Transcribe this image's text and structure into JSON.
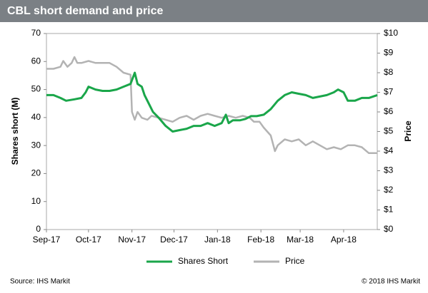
{
  "chart_data": {
    "type": "line",
    "title": "CBL short demand and price",
    "ylabel": "Shares short (M)",
    "y2label": "Price",
    "xlim": [
      0,
      236
    ],
    "xticks": [
      {
        "value": 0,
        "label": "Sep-17"
      },
      {
        "value": 30,
        "label": "Oct-17"
      },
      {
        "value": 61,
        "label": "Nov-17"
      },
      {
        "value": 91,
        "label": "Dec-17"
      },
      {
        "value": 122,
        "label": "Jan-18"
      },
      {
        "value": 153,
        "label": "Feb-18"
      },
      {
        "value": 181,
        "label": "Mar-18"
      },
      {
        "value": 212,
        "label": "Apr-18"
      }
    ],
    "ylim": [
      0,
      70
    ],
    "yticks": [
      0,
      10,
      20,
      30,
      40,
      50,
      60,
      70
    ],
    "y2lim": [
      0,
      10
    ],
    "y2ticks": [
      {
        "value": 0,
        "label": "$0"
      },
      {
        "value": 1,
        "label": "$1"
      },
      {
        "value": 2,
        "label": "$2"
      },
      {
        "value": 3,
        "label": "$3"
      },
      {
        "value": 4,
        "label": "$4"
      },
      {
        "value": 5,
        "label": "$5"
      },
      {
        "value": 6,
        "label": "$6"
      },
      {
        "value": 7,
        "label": "$7"
      },
      {
        "value": 8,
        "label": "$8"
      },
      {
        "value": 9,
        "label": "$9"
      },
      {
        "value": 10,
        "label": "$10"
      }
    ],
    "series": [
      {
        "name": "Shares Short",
        "color": "#1aa64a",
        "x": [
          0,
          5,
          10,
          14,
          20,
          25,
          28,
          30,
          35,
          40,
          45,
          50,
          55,
          60,
          63,
          65,
          68,
          70,
          73,
          76,
          80,
          85,
          90,
          95,
          100,
          105,
          110,
          115,
          120,
          125,
          128,
          130,
          133,
          138,
          142,
          146,
          150,
          155,
          160,
          165,
          170,
          175,
          180,
          185,
          190,
          195,
          200,
          205,
          208,
          212,
          215,
          220,
          225,
          230,
          236
        ],
        "values": [
          48,
          48,
          47,
          46,
          46.5,
          47,
          49,
          51,
          50,
          49.5,
          49.5,
          50,
          51,
          52,
          56,
          52,
          51,
          48,
          45,
          42,
          40,
          37,
          35,
          35.5,
          36,
          37,
          37,
          38,
          37,
          38,
          41,
          38,
          39,
          39,
          39.5,
          40.5,
          40.5,
          41,
          43,
          46,
          48,
          49,
          48.5,
          48,
          47,
          47.5,
          48,
          49,
          50,
          49,
          46,
          46,
          47,
          47,
          48
        ]
      },
      {
        "name": "Price",
        "color": "#b3b3b3",
        "axis": "y2",
        "x": [
          0,
          5,
          10,
          12,
          15,
          18,
          20,
          22,
          25,
          30,
          35,
          40,
          45,
          50,
          55,
          60,
          61,
          63,
          65,
          68,
          72,
          75,
          80,
          85,
          90,
          95,
          100,
          105,
          110,
          115,
          120,
          125,
          130,
          135,
          140,
          145,
          148,
          152,
          155,
          160,
          163,
          165,
          170,
          175,
          180,
          185,
          190,
          195,
          200,
          205,
          210,
          215,
          220,
          225,
          230,
          236
        ],
        "values": [
          8.2,
          8.2,
          8.3,
          8.6,
          8.3,
          8.5,
          8.8,
          8.5,
          8.5,
          8.6,
          8.5,
          8.5,
          8.5,
          8.3,
          8.0,
          7.9,
          6.0,
          5.6,
          6.0,
          5.7,
          5.6,
          5.8,
          5.7,
          5.6,
          5.5,
          5.7,
          5.8,
          5.6,
          5.8,
          5.9,
          5.8,
          5.7,
          5.8,
          5.7,
          5.8,
          5.7,
          5.5,
          5.5,
          5.2,
          4.8,
          4.0,
          4.3,
          4.6,
          4.5,
          4.6,
          4.3,
          4.5,
          4.3,
          4.1,
          4.2,
          4.1,
          4.3,
          4.3,
          4.2,
          3.9,
          3.9
        ]
      }
    ],
    "source": "Source: IHS Markit",
    "copyright": "© 2018 IHS Markit"
  }
}
